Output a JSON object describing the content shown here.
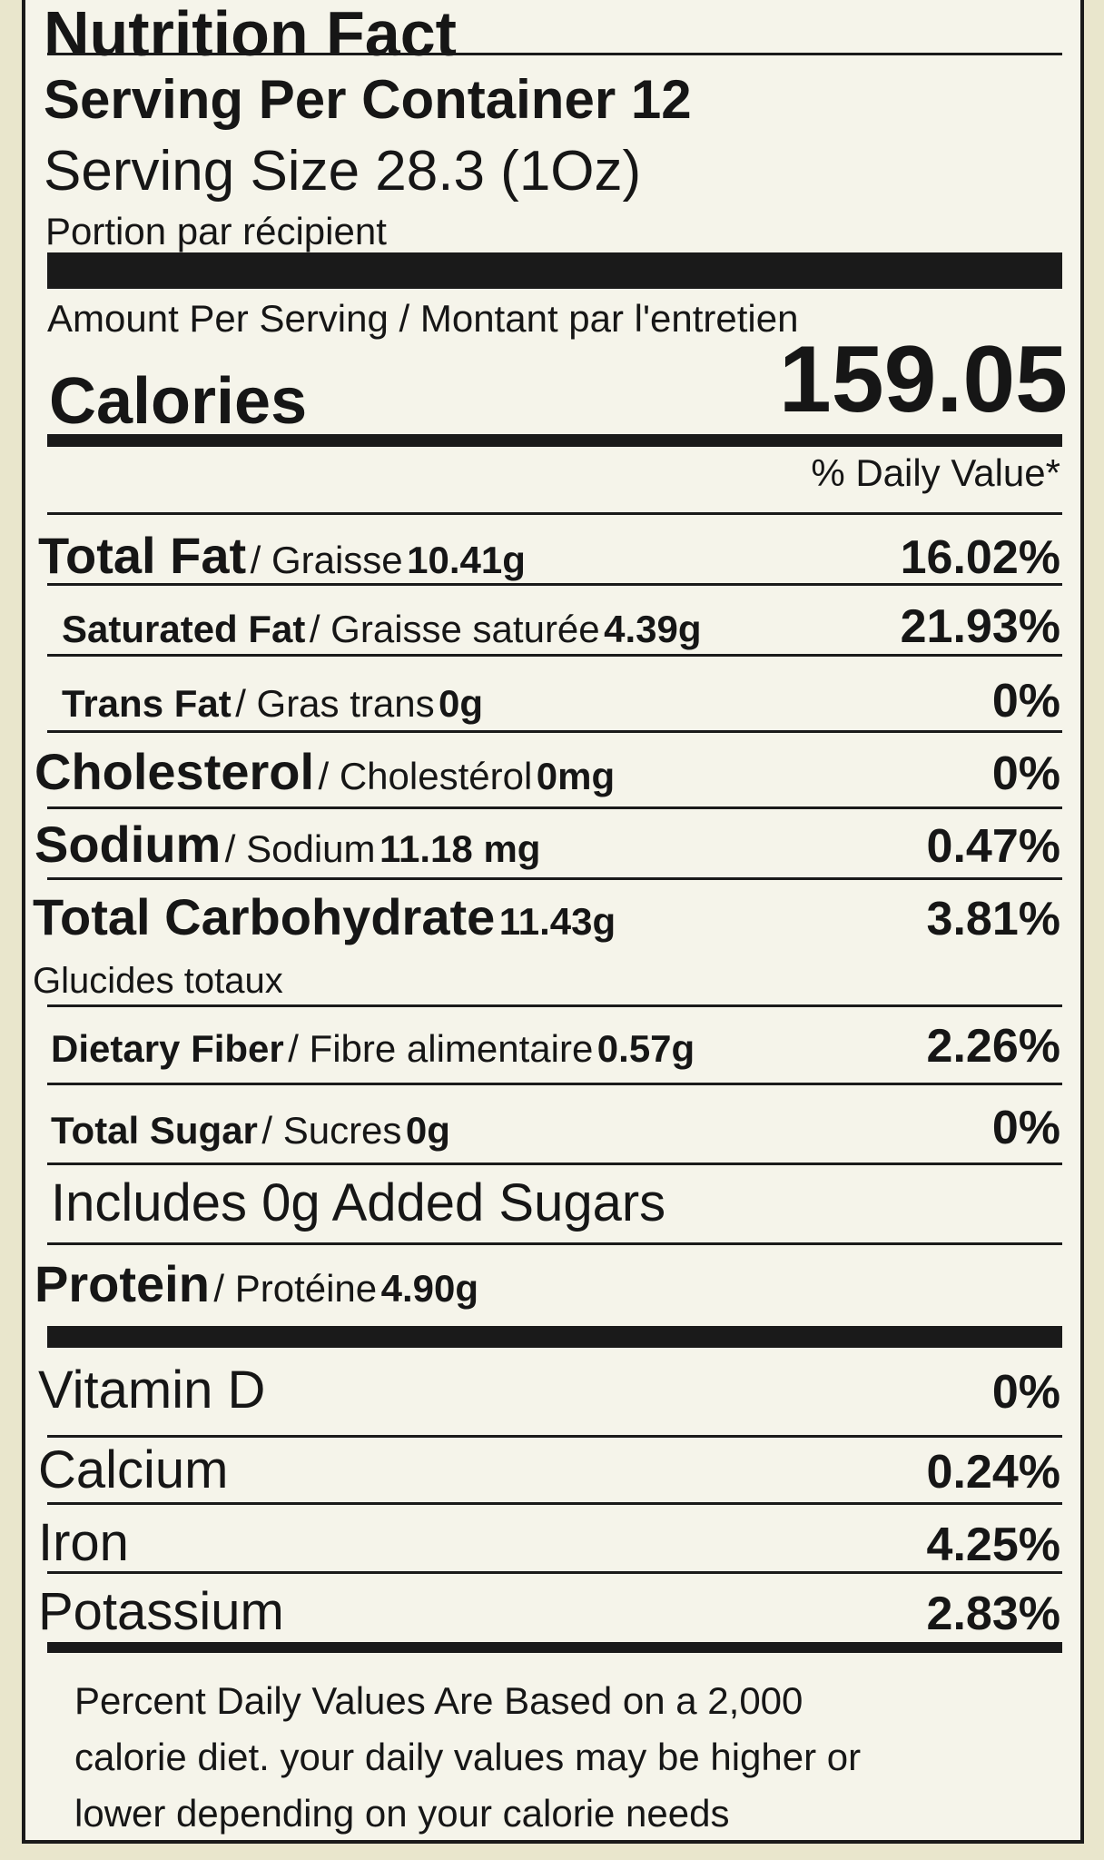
{
  "header": {
    "title": "Nutrition Fact",
    "servings": "Serving Per Container 12",
    "serving_size": "Serving Size 28.3 (1Oz)",
    "portion": "Portion par récipient"
  },
  "calories": {
    "amount_per": "Amount Per Serving / Montant par l'entretien",
    "label": "Calories",
    "value": "159.05",
    "daily_value_heading": "% Daily Value*"
  },
  "nutrients": [
    {
      "name": "Total Fat",
      "french": "/ Graisse",
      "amount": "10.41g",
      "dv": "16.02%"
    },
    {
      "name": "Saturated Fat",
      "french": "/ Graisse saturée",
      "amount": "4.39g",
      "dv": "21.93%"
    },
    {
      "name": "Trans Fat",
      "french": "/ Gras trans",
      "amount": "0g",
      "dv": "0%"
    },
    {
      "name": "Cholesterol",
      "french": "/ Cholestérol",
      "amount": "0mg",
      "dv": "0%"
    },
    {
      "name": "Sodium",
      "french": "/ Sodium",
      "amount": "11.18 mg",
      "dv": "0.47%"
    },
    {
      "name": "Total Carbohydrate",
      "amount": "11.43g",
      "dv": "3.81%",
      "subline": "Glucides totaux"
    },
    {
      "name": "Dietary Fiber",
      "french": "/ Fibre alimentaire",
      "amount": "0.57g",
      "dv": "2.26%"
    },
    {
      "name": "Total Sugar",
      "french": "/ Sucres",
      "amount": "0g",
      "dv": "0%"
    },
    {
      "text": "Includes 0g Added Sugars"
    },
    {
      "name": "Protein",
      "french": "/ Protéine",
      "amount": "4.90g"
    }
  ],
  "vitamins": [
    {
      "name": "Vitamin D",
      "dv": "0%"
    },
    {
      "name": "Calcium",
      "dv": "0.24%"
    },
    {
      "name": "Iron",
      "dv": "4.25%"
    },
    {
      "name": "Potassium",
      "dv": "2.83%"
    }
  ],
  "footnote": [
    "Percent Daily Values Are Based on a 2,000",
    "calorie diet. your daily values may be higher or",
    "lower depending on your calorie needs"
  ]
}
